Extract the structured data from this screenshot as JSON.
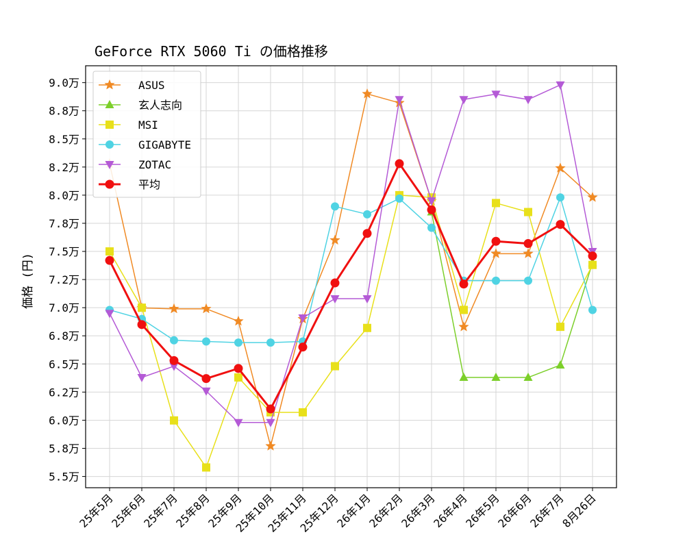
{
  "chart_data": {
    "type": "line",
    "title": "GeForce RTX 5060 Ti の価格推移",
    "xlabel": "",
    "ylabel": "価格 (円)",
    "ylim": [
      54000,
      91500
    ],
    "grid": true,
    "legend_position": "upper-left",
    "categories": [
      "25年5月",
      "25年6月",
      "25年7月",
      "25年8月",
      "25年9月",
      "25年10月",
      "25年11月",
      "25年12月",
      "26年1月",
      "26年2月",
      "26年3月",
      "26年4月",
      "26年5月",
      "26年6月",
      "26年7月",
      "8月26日"
    ],
    "y_ticks": [
      {
        "value": 55000,
        "label": "5.5万"
      },
      {
        "value": 57500,
        "label": "5.8万"
      },
      {
        "value": 60000,
        "label": "6.0万"
      },
      {
        "value": 62500,
        "label": "6.2万"
      },
      {
        "value": 65000,
        "label": "6.5万"
      },
      {
        "value": 67500,
        "label": "6.8万"
      },
      {
        "value": 70000,
        "label": "7.0万"
      },
      {
        "value": 72500,
        "label": "7.2万"
      },
      {
        "value": 75000,
        "label": "7.5万"
      },
      {
        "value": 77500,
        "label": "7.8万"
      },
      {
        "value": 80000,
        "label": "8.0万"
      },
      {
        "value": 82500,
        "label": "8.2万"
      },
      {
        "value": 85000,
        "label": "8.5万"
      },
      {
        "value": 87500,
        "label": "8.8万"
      },
      {
        "value": 90000,
        "label": "9.0万"
      }
    ],
    "series": [
      {
        "name": "ASUS",
        "color": "#f08a24",
        "marker": "star",
        "values": [
          82800,
          69980,
          69900,
          69900,
          68800,
          57700,
          69000,
          76000,
          89000,
          88200,
          79500,
          68300,
          74800,
          74800,
          82400,
          79800
        ]
      },
      {
        "name": "玄人志向",
        "color": "#7ccf2a",
        "marker": "triangle-up",
        "values": [
          null,
          null,
          null,
          null,
          null,
          null,
          null,
          null,
          null,
          null,
          78500,
          63800,
          63800,
          63800,
          64900,
          74000
        ]
      },
      {
        "name": "MSI",
        "color": "#e8e01a",
        "marker": "square",
        "values": [
          75000,
          70000,
          59980,
          55800,
          63800,
          60700,
          60700,
          64800,
          68200,
          80000,
          79800,
          69800,
          79300,
          78500,
          68300,
          73800
        ]
      },
      {
        "name": "GIGABYTE",
        "color": "#4fd3e3",
        "marker": "circle",
        "values": [
          69800,
          69000,
          67100,
          67000,
          66900,
          66900,
          67000,
          79000,
          78300,
          79700,
          77100,
          72400,
          72400,
          72400,
          79800,
          69800
        ]
      },
      {
        "name": "ZOTAC",
        "color": "#b45ad6",
        "marker": "triangle-down",
        "values": [
          69500,
          63800,
          64800,
          62600,
          59800,
          59800,
          69100,
          70800,
          70800,
          88500,
          79500,
          88500,
          88980,
          88500,
          89800,
          75000
        ]
      },
      {
        "name": "平均",
        "color": "#f01010",
        "marker": "circle-big",
        "bold": true,
        "values": [
          74200,
          68500,
          65300,
          63700,
          64600,
          61000,
          66500,
          72200,
          76600,
          82800,
          78700,
          72100,
          75900,
          75700,
          77400,
          74600
        ]
      }
    ]
  }
}
